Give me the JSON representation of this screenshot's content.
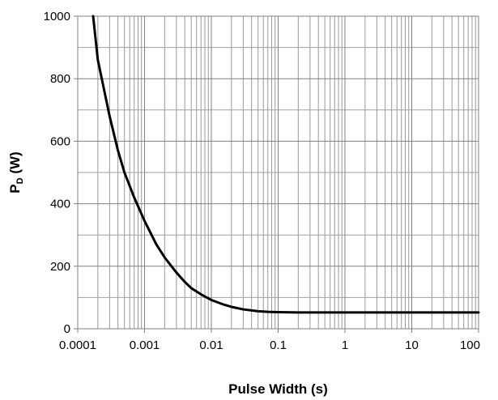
{
  "chart_data": {
    "type": "line",
    "title": "",
    "xlabel": "Pulse Width (s)",
    "ylabel_main": "P",
    "ylabel_sub": "D",
    "ylabel_unit": " (W)",
    "x_scale": "log",
    "xlim": [
      0.0001,
      100
    ],
    "ylim": [
      0,
      1000
    ],
    "x_ticks": [
      {
        "value": 0.0001,
        "label": "0.0001"
      },
      {
        "value": 0.001,
        "label": "0.001"
      },
      {
        "value": 0.01,
        "label": "0.01"
      },
      {
        "value": 0.1,
        "label": "0.1"
      },
      {
        "value": 1,
        "label": "1"
      },
      {
        "value": 10,
        "label": "10"
      },
      {
        "value": 100,
        "label": "100"
      }
    ],
    "y_ticks": [
      {
        "value": 0,
        "label": "0"
      },
      {
        "value": 200,
        "label": "200"
      },
      {
        "value": 400,
        "label": "400"
      },
      {
        "value": 600,
        "label": "600"
      },
      {
        "value": 800,
        "label": "800"
      },
      {
        "value": 1000,
        "label": "1000"
      }
    ],
    "grid": true,
    "minor_grid": true,
    "legend": false,
    "series": [
      {
        "color": "#000000",
        "points": [
          [
            0.00017,
            1000
          ],
          [
            0.0002,
            860
          ],
          [
            0.0003,
            680
          ],
          [
            0.0004,
            570
          ],
          [
            0.0005,
            500
          ],
          [
            0.0007,
            420
          ],
          [
            0.001,
            345
          ],
          [
            0.0015,
            270
          ],
          [
            0.002,
            228
          ],
          [
            0.003,
            180
          ],
          [
            0.004,
            150
          ],
          [
            0.005,
            130
          ],
          [
            0.007,
            110
          ],
          [
            0.01,
            92
          ],
          [
            0.015,
            78
          ],
          [
            0.02,
            70
          ],
          [
            0.03,
            62
          ],
          [
            0.05,
            56
          ],
          [
            0.07,
            54
          ],
          [
            0.1,
            53
          ],
          [
            0.2,
            52
          ],
          [
            0.5,
            52
          ],
          [
            1,
            52
          ],
          [
            10,
            52
          ],
          [
            100,
            52
          ]
        ]
      }
    ]
  }
}
